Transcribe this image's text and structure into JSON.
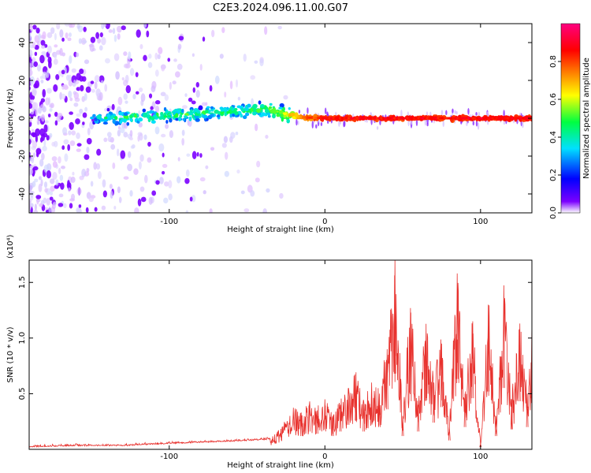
{
  "title": "C2E3.2024.096.11.00.G07",
  "chart_data": [
    {
      "type": "heatmap",
      "xlabel": "Height of straight line (km)",
      "ylabel": "Frequency (Hz)",
      "xlim": [
        -190,
        133
      ],
      "ylim": [
        -50,
        50
      ],
      "xticks": [
        -100,
        0,
        100
      ],
      "yticks": [
        -40,
        -20,
        0,
        20,
        40
      ],
      "grid": false,
      "colorbar": {
        "label": "Normalized spectral amplitude",
        "range": [
          0,
          1
        ],
        "ticks": [
          0.0,
          0.2,
          0.4,
          0.6,
          0.8
        ],
        "colors": [
          "#ffffff",
          "#7b00ff",
          "#0000ff",
          "#00e0ff",
          "#00ff40",
          "#ffff00",
          "#ff8000",
          "#ff0000",
          "#ff0080"
        ]
      },
      "ridge": [
        {
          "x": -150,
          "f": 0.0,
          "a": 0.35
        },
        {
          "x": -130,
          "f": 0.5,
          "a": 0.45
        },
        {
          "x": -110,
          "f": 1.0,
          "a": 0.45
        },
        {
          "x": -90,
          "f": 2.0,
          "a": 0.45
        },
        {
          "x": -70,
          "f": 3.0,
          "a": 0.45
        },
        {
          "x": -50,
          "f": 4.0,
          "a": 0.48
        },
        {
          "x": -35,
          "f": 5.0,
          "a": 0.5
        },
        {
          "x": -25,
          "f": 2.0,
          "a": 0.6
        },
        {
          "x": -15,
          "f": 0.5,
          "a": 0.75
        },
        {
          "x": 0,
          "f": 0.0,
          "a": 0.85
        },
        {
          "x": 133,
          "f": 0.0,
          "a": 0.88
        }
      ]
    },
    {
      "type": "line",
      "xlabel": "Height of straight line (km)",
      "ylabel": "SNR (10 * v/v)",
      "y_multiplier": "(x10⁴)",
      "xlim": [
        -190,
        133
      ],
      "ylim": [
        0,
        1.7
      ],
      "xticks": [
        -100,
        0,
        100
      ],
      "yticks": [
        0.5,
        1.0,
        1.5
      ],
      "grid": false,
      "series": [
        {
          "color": "#e8322e",
          "x": [
            -190,
            -160,
            -130,
            -100,
            -80,
            -60,
            -45,
            -35,
            -30,
            -25,
            -20,
            -15,
            -10,
            -5,
            0,
            5,
            10,
            15,
            20,
            25,
            30,
            35,
            40,
            45,
            50,
            55,
            60,
            65,
            70,
            75,
            80,
            85,
            90,
            95,
            100,
            105,
            110,
            115,
            120,
            125,
            130,
            133
          ],
          "y": [
            0.02,
            0.03,
            0.03,
            0.05,
            0.06,
            0.07,
            0.08,
            0.09,
            0.15,
            0.25,
            0.35,
            0.3,
            0.4,
            0.35,
            0.45,
            0.3,
            0.4,
            0.55,
            0.65,
            0.4,
            0.6,
            0.5,
            0.9,
            1.7,
            0.3,
            1.27,
            0.4,
            1.1,
            0.6,
            0.95,
            0.2,
            1.58,
            0.5,
            1.15,
            0.05,
            1.3,
            0.3,
            1.38,
            0.45,
            1.08,
            0.5,
            1.15
          ]
        }
      ]
    }
  ]
}
